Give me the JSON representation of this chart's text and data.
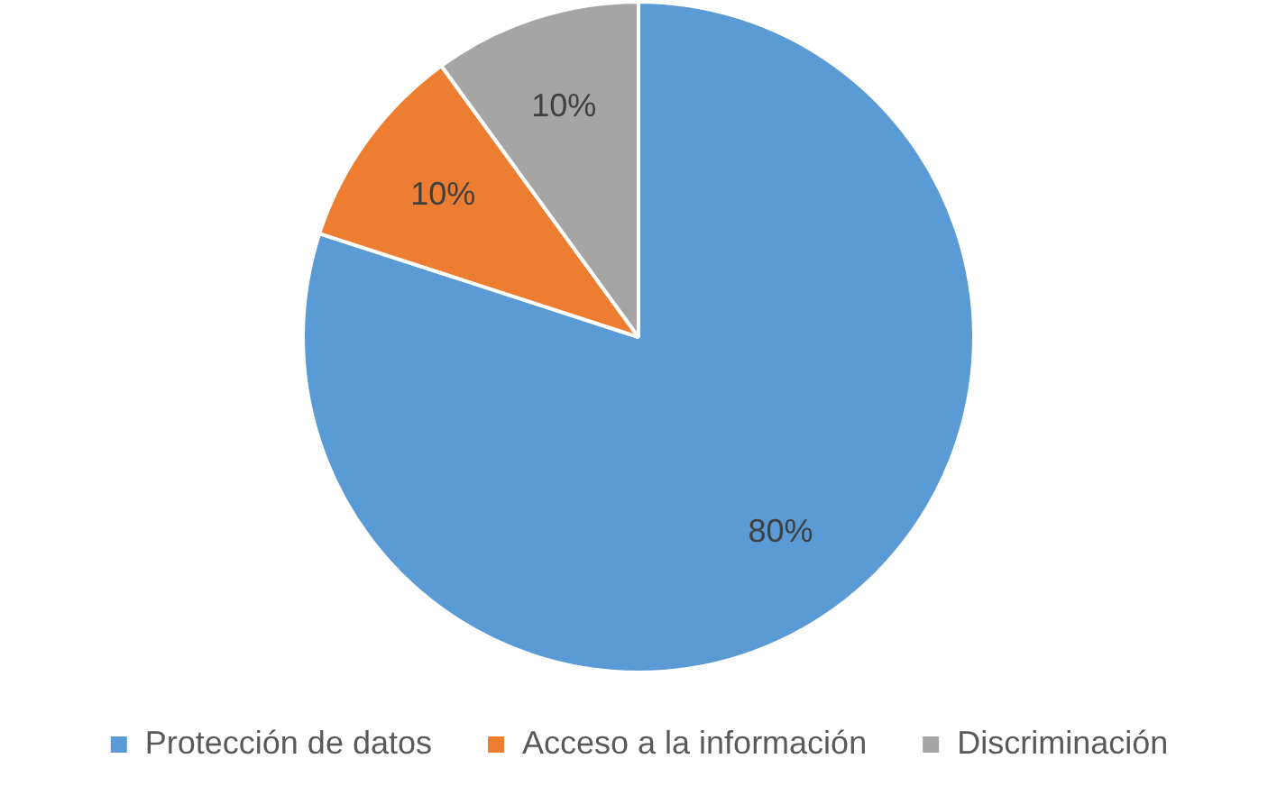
{
  "chart_data": {
    "type": "pie",
    "categories": [
      "Protección de datos",
      "Acceso a la información",
      "Discriminación"
    ],
    "values": [
      80,
      10,
      10
    ],
    "colors": [
      "#5b9bd5",
      "#ed7d31",
      "#a5a5a5"
    ],
    "value_labels": [
      "80%",
      "10%",
      "10%"
    ],
    "legend": "bottom"
  }
}
